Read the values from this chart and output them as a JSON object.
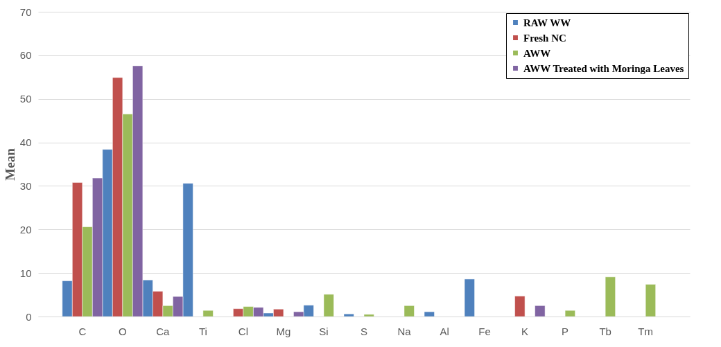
{
  "chart_data": {
    "type": "bar",
    "ylabel": "Mean",
    "categories": [
      "C",
      "O",
      "Ca",
      "Ti",
      "Cl",
      "Mg",
      "Si",
      "S",
      "Na",
      "Al",
      "Fe",
      "K",
      "P",
      "Tb",
      "Tm"
    ],
    "series": [
      {
        "name": "RAW WW",
        "color": "#4f81bd",
        "values": [
          8.2,
          38.4,
          8.4,
          30.6,
          null,
          0.8,
          2.6,
          0.6,
          null,
          1.1,
          8.6,
          null,
          null,
          null,
          null
        ]
      },
      {
        "name": "Fresh NC",
        "color": "#c0504d",
        "values": [
          30.8,
          54.9,
          5.8,
          null,
          1.8,
          1.7,
          null,
          null,
          null,
          null,
          null,
          4.7,
          null,
          null,
          null
        ]
      },
      {
        "name": "AWW",
        "color": "#9bbb59",
        "values": [
          20.6,
          46.5,
          2.5,
          1.4,
          2.3,
          null,
          5.1,
          0.5,
          2.5,
          null,
          null,
          null,
          1.4,
          9.1,
          7.4
        ]
      },
      {
        "name": "AWW Treated with Moringa Leaves",
        "color": "#8064a2",
        "values": [
          31.8,
          57.6,
          4.6,
          null,
          2.1,
          1.1,
          null,
          null,
          null,
          null,
          null,
          2.5,
          null,
          null,
          null
        ]
      }
    ],
    "ylim": [
      0,
      70
    ],
    "yticks": [
      0,
      10,
      20,
      30,
      40,
      50,
      60,
      70
    ],
    "grid": "y",
    "legend": "top right"
  }
}
